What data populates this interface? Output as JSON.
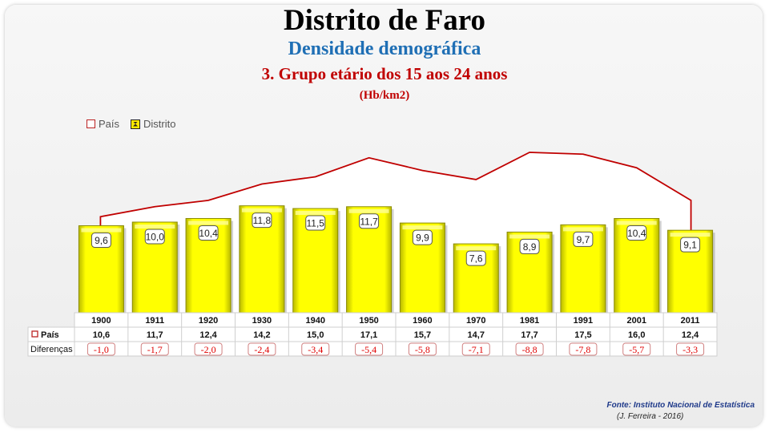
{
  "title": "Distrito de Faro",
  "subtitle": "Densidade demográfica",
  "subtitle2": "3. Grupo etário dos 15 aos 24 anos",
  "unit": "(Hb/km2)",
  "legend": {
    "pais": "País",
    "distrito": "Distrito"
  },
  "table_labels": {
    "pais": "País",
    "diferencas": "Diferenças"
  },
  "source": "Fonte: Instituto Nacional de Estatística",
  "author": "(J. Ferreira - 2016)",
  "colors": {
    "bar": "#ffff00",
    "line": "#c00000",
    "diff_text": "#e00000"
  },
  "chart_data": {
    "type": "bar",
    "categories": [
      "1900",
      "1911",
      "1920",
      "1930",
      "1940",
      "1950",
      "1960",
      "1970",
      "1981",
      "1991",
      "2001",
      "2011"
    ],
    "series": [
      {
        "name": "Distrito",
        "type": "bar",
        "values": [
          9.6,
          10.0,
          10.4,
          11.8,
          11.5,
          11.7,
          9.9,
          7.6,
          8.9,
          9.7,
          10.4,
          9.1
        ],
        "labels": [
          "9,6",
          "10,0",
          "10,4",
          "11,8",
          "11,5",
          "11,7",
          "9,9",
          "7,6",
          "8,9",
          "9,7",
          "10,4",
          "9,1"
        ]
      },
      {
        "name": "País",
        "type": "line",
        "values": [
          10.6,
          11.7,
          12.4,
          14.2,
          15.0,
          17.1,
          15.7,
          14.7,
          17.7,
          17.5,
          16.0,
          12.4
        ],
        "labels": [
          "10,6",
          "11,7",
          "12,4",
          "14,2",
          "15,0",
          "17,1",
          "15,7",
          "14,7",
          "17,7",
          "17,5",
          "16,0",
          "12,4"
        ]
      }
    ],
    "differences": [
      "-1,0",
      "-1,7",
      "-2,0",
      "-2,4",
      "-3,4",
      "-5,4",
      "-5,8",
      "-7,1",
      "-8,8",
      "-7,8",
      "-5,7",
      "-3,3"
    ],
    "ylim": [
      0,
      20
    ],
    "legend_position": "top-left",
    "grid": false
  }
}
